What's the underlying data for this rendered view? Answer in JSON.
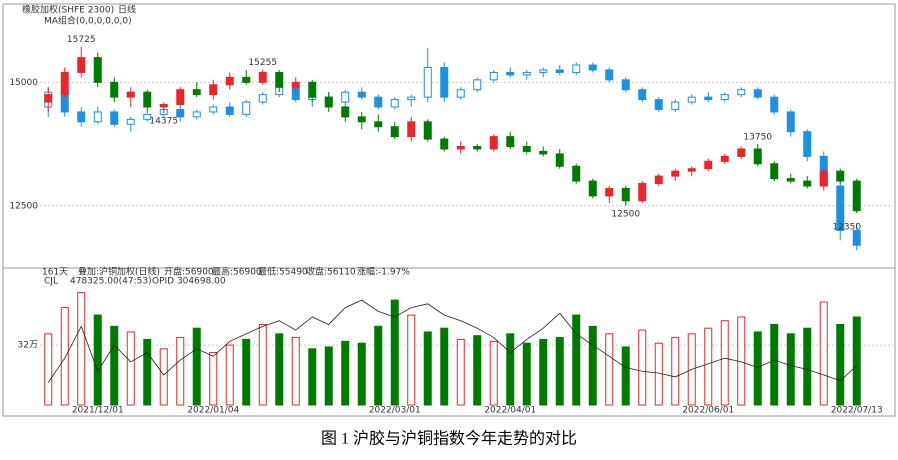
{
  "chart_data": [
    {
      "type": "candlestick",
      "title": "橡胶加权(SHFE 2300)",
      "period": "日线",
      "indicator": "MA组合(0,0,0,0,0,0)",
      "ylim": [
        11300,
        16100
      ],
      "yticks": [
        12500,
        15000
      ],
      "grid": true,
      "info": [
        "161天",
        "叠加:沪铜加权(日线)",
        "开盘:56900",
        "最高:56900",
        "最低:55490",
        "收盘:56110",
        "涨幅:-1.97%"
      ],
      "series": [
        {
          "name": "橡胶加权",
          "up_color": "#e8262b",
          "down_color": "#007a00",
          "hollow_up": false,
          "values": [
            [
              14600,
              14900,
              14400,
              14750
            ],
            [
              14750,
              15300,
              14700,
              15200
            ],
            [
              15200,
              15725,
              15100,
              15500
            ],
            [
              15500,
              15600,
              14900,
              15000
            ],
            [
              15000,
              15100,
              14600,
              14700
            ],
            [
              14700,
              14900,
              14500,
              14800
            ],
            [
              14800,
              14850,
              14400,
              14500
            ],
            [
              14500,
              14600,
              14375,
              14550
            ],
            [
              14550,
              14900,
              14500,
              14850
            ],
            [
              14850,
              15000,
              14700,
              14750
            ],
            [
              14750,
              15050,
              14650,
              14950
            ],
            [
              14950,
              15200,
              14850,
              15100
            ],
            [
              15100,
              15250,
              14950,
              15000
            ],
            [
              15000,
              15255,
              14950,
              15200
            ],
            [
              15200,
              15250,
              14800,
              14900
            ],
            [
              14900,
              15100,
              14750,
              15000
            ],
            [
              15000,
              15050,
              14600,
              14700
            ],
            [
              14700,
              14800,
              14400,
              14500
            ],
            [
              14500,
              14550,
              14200,
              14300
            ],
            [
              14300,
              14400,
              14050,
              14200
            ],
            [
              14200,
              14350,
              14000,
              14100
            ],
            [
              14100,
              14200,
              13850,
              13900
            ],
            [
              13900,
              14300,
              13800,
              14200
            ],
            [
              14200,
              14250,
              13800,
              13850
            ],
            [
              13850,
              13900,
              13600,
              13650
            ],
            [
              13650,
              13800,
              13550,
              13700
            ],
            [
              13700,
              13750,
              13600,
              13650
            ],
            [
              13650,
              13950,
              13600,
              13900
            ],
            [
              13900,
              14000,
              13650,
              13700
            ],
            [
              13700,
              13800,
              13550,
              13600
            ],
            [
              13600,
              13700,
              13500,
              13550
            ],
            [
              13550,
              13650,
              13250,
              13300
            ],
            [
              13300,
              13350,
              12950,
              13000
            ],
            [
              13000,
              13050,
              12650,
              12700
            ],
            [
              12700,
              12900,
              12550,
              12850
            ],
            [
              12850,
              12900,
              12500,
              12600
            ],
            [
              12600,
              13000,
              12550,
              12950
            ],
            [
              12950,
              13150,
              12900,
              13100
            ],
            [
              13100,
              13250,
              13000,
              13200
            ],
            [
              13200,
              13300,
              13100,
              13250
            ],
            [
              13250,
              13450,
              13200,
              13400
            ],
            [
              13400,
              13550,
              13350,
              13500
            ],
            [
              13500,
              13700,
              13450,
              13650
            ],
            [
              13650,
              13750,
              13300,
              13350
            ],
            [
              13350,
              13400,
              13000,
              13050
            ],
            [
              13050,
              13150,
              12950,
              13000
            ],
            [
              13000,
              13100,
              12850,
              12900
            ],
            [
              12900,
              13250,
              12850,
              13200
            ],
            [
              13200,
              13250,
              12950,
              13000
            ],
            [
              13000,
              13050,
              12350,
              12400
            ]
          ]
        },
        {
          "name": "沪铜加权",
          "up_color": "#1e90e0",
          "down_color": "#1e90e0",
          "hollow_up": true,
          "values": [
            [
              14500,
              14900,
              14300,
              14800
            ],
            [
              14800,
              14850,
              14300,
              14400
            ],
            [
              14400,
              14500,
              14100,
              14200
            ],
            [
              14200,
              14500,
              14150,
              14400
            ],
            [
              14400,
              14450,
              14100,
              14150
            ],
            [
              14150,
              14300,
              14000,
              14250
            ],
            [
              14250,
              14400,
              14200,
              14350
            ],
            [
              14350,
              14500,
              14300,
              14450
            ],
            [
              14450,
              14500,
              14200,
              14300
            ],
            [
              14300,
              14450,
              14250,
              14400
            ],
            [
              14400,
              14550,
              14350,
              14500
            ],
            [
              14500,
              14600,
              14300,
              14350
            ],
            [
              14350,
              14650,
              14300,
              14600
            ],
            [
              14600,
              14800,
              14550,
              14750
            ],
            [
              14750,
              14950,
              14700,
              14900
            ],
            [
              14900,
              14950,
              14600,
              14650
            ],
            [
              14650,
              14750,
              14500,
              14700
            ],
            [
              14700,
              14800,
              14550,
              14600
            ],
            [
              14600,
              14850,
              14550,
              14800
            ],
            [
              14800,
              14900,
              14650,
              14700
            ],
            [
              14700,
              14750,
              14450,
              14500
            ],
            [
              14500,
              14700,
              14450,
              14650
            ],
            [
              14650,
              14750,
              14500,
              14700
            ],
            [
              14700,
              15700,
              14600,
              15300
            ],
            [
              15300,
              15400,
              14600,
              14700
            ],
            [
              14700,
              14900,
              14650,
              14850
            ],
            [
              14850,
              15100,
              14800,
              15050
            ],
            [
              15050,
              15250,
              15000,
              15200
            ],
            [
              15200,
              15300,
              15100,
              15150
            ],
            [
              15150,
              15250,
              15050,
              15200
            ],
            [
              15200,
              15300,
              15100,
              15250
            ],
            [
              15250,
              15350,
              15150,
              15200
            ],
            [
              15200,
              15400,
              15150,
              15350
            ],
            [
              15350,
              15400,
              15200,
              15250
            ],
            [
              15250,
              15300,
              15000,
              15050
            ],
            [
              15050,
              15100,
              14800,
              14850
            ],
            [
              14850,
              14900,
              14600,
              14650
            ],
            [
              14650,
              14700,
              14400,
              14450
            ],
            [
              14450,
              14650,
              14400,
              14600
            ],
            [
              14600,
              14750,
              14550,
              14700
            ],
            [
              14700,
              14800,
              14600,
              14650
            ],
            [
              14650,
              14800,
              14600,
              14750
            ],
            [
              14750,
              14900,
              14700,
              14850
            ],
            [
              14850,
              14900,
              14650,
              14700
            ],
            [
              14700,
              14750,
              14350,
              14400
            ],
            [
              14400,
              14450,
              13900,
              14000
            ],
            [
              14000,
              14050,
              13400,
              13500
            ],
            [
              13500,
              13600,
              12800,
              12900
            ],
            [
              12900,
              13000,
              11800,
              12000
            ],
            [
              12000,
              12150,
              11600,
              11700
            ]
          ]
        }
      ],
      "annotations": [
        {
          "category_index": 2,
          "value": 15725,
          "place": "above"
        },
        {
          "category_index": 7,
          "value": 14375,
          "place": "below"
        },
        {
          "category_index": 13,
          "value": 15255,
          "place": "above"
        },
        {
          "category_index": 35,
          "value": 12500,
          "place": "below"
        },
        {
          "category_index": 43,
          "value": 13750,
          "place": "above"
        },
        {
          "category_index": 49,
          "value": 12350,
          "place": "right"
        }
      ]
    },
    {
      "type": "bar",
      "title": "CJL",
      "subtitle": "478325.00(47:53)",
      "line_title": "OPID 304698.00",
      "ylim": [
        0,
        630000
      ],
      "yticks": [
        {
          "value": 320000,
          "label": "32万"
        }
      ],
      "grid": true,
      "categories": [
        null,
        null,
        null,
        "2021/12/01",
        null,
        null,
        null,
        null,
        null,
        null,
        "2022/01/04",
        null,
        null,
        null,
        null,
        null,
        null,
        null,
        null,
        null,
        null,
        "2022/03/01",
        null,
        null,
        null,
        null,
        null,
        null,
        "2022/04/01",
        null,
        null,
        null,
        null,
        null,
        null,
        null,
        null,
        null,
        null,
        null,
        "2022/06/01",
        null,
        null,
        null,
        null,
        null,
        null,
        null,
        null,
        "2022/07/13"
      ],
      "values": [
        380000,
        520000,
        600000,
        480000,
        420000,
        390000,
        350000,
        300000,
        360000,
        410000,
        280000,
        320000,
        350000,
        430000,
        380000,
        360000,
        300000,
        310000,
        340000,
        330000,
        420000,
        560000,
        480000,
        390000,
        410000,
        350000,
        370000,
        340000,
        380000,
        330000,
        350000,
        360000,
        480000,
        420000,
        380000,
        310000,
        400000,
        330000,
        360000,
        380000,
        410000,
        450000,
        470000,
        390000,
        430000,
        380000,
        410000,
        550000,
        430000,
        470000
      ],
      "bar_colors": {
        "up": "#e8262b",
        "down": "#007a00"
      },
      "line": {
        "name": "OPID",
        "color": "#222",
        "values": [
          120000,
          250000,
          420000,
          180000,
          320000,
          230000,
          280000,
          160000,
          240000,
          300000,
          260000,
          340000,
          380000,
          420000,
          450000,
          400000,
          470000,
          430000,
          520000,
          560000,
          500000,
          470000,
          520000,
          540000,
          480000,
          450000,
          410000,
          360000,
          280000,
          350000,
          410000,
          490000,
          380000,
          320000,
          260000,
          200000,
          180000,
          170000,
          150000,
          190000,
          220000,
          250000,
          230000,
          200000,
          240000,
          210000,
          190000,
          160000,
          130000,
          210000
        ]
      }
    }
  ],
  "figure_caption": "图 1  沪胶与沪铜指数今年走势的对比"
}
